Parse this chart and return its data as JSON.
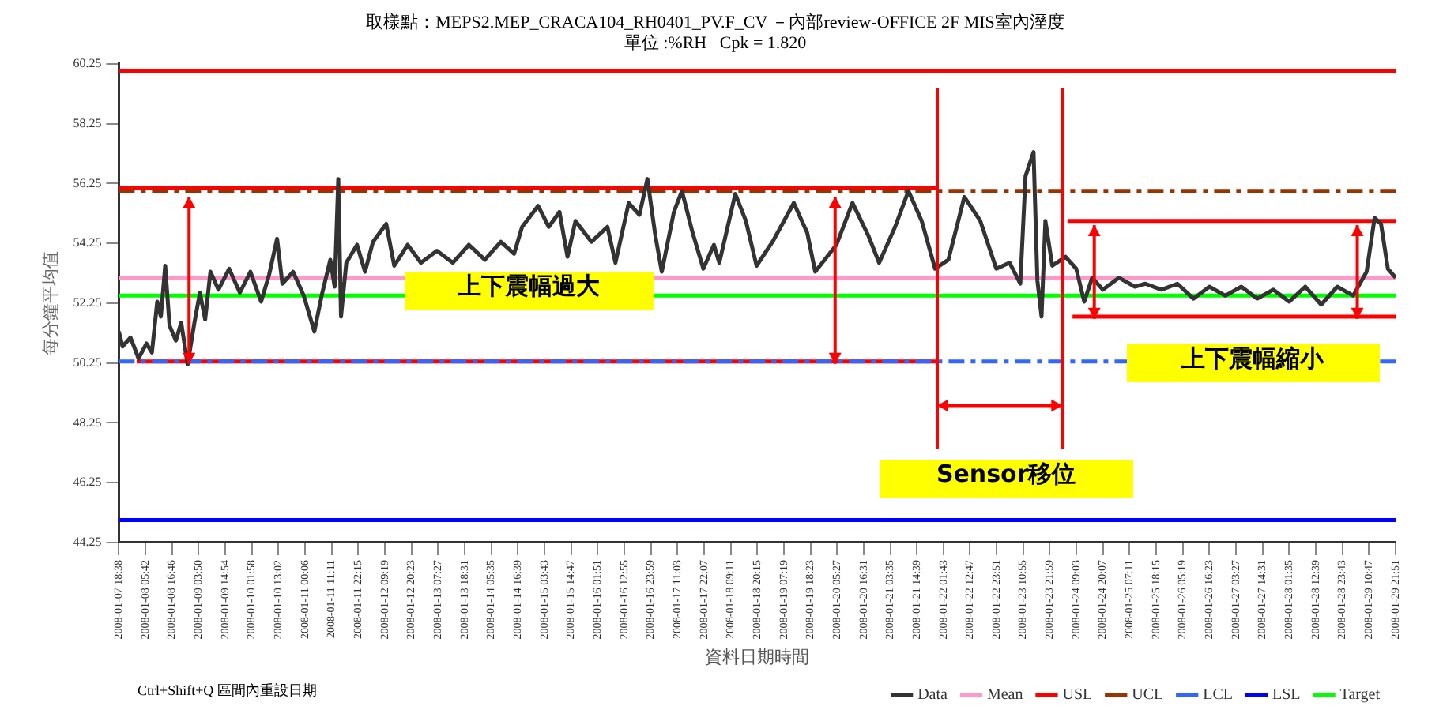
{
  "chart_data": {
    "type": "line",
    "title": "取樣點：MEPS2.MEP_CRACA104_RH0401_PV.F_CV －內部review-OFFICE 2F MIS室內溼度",
    "subtitle": "單位 :%RH   Cpk = 1.820",
    "xlabel": "資料日期時間",
    "ylabel": "每分鐘平均值",
    "xlim": [
      "2008-01-07T18:38",
      "2008-01-29T21:51"
    ],
    "xticks": [
      {
        "value": "2008-01-07T18:38",
        "label": "2008-01-07 18:38"
      },
      {
        "value": "2008-01-08T05:42",
        "label": "2008-01-08 05:42"
      },
      {
        "value": "2008-01-08T16:46",
        "label": "2008-01-08 16:46"
      },
      {
        "value": "2008-01-09T03:50",
        "label": "2008-01-09 03:50"
      },
      {
        "value": "2008-01-09T14:54",
        "label": "2008-01-09 14:54"
      },
      {
        "value": "2008-01-10T01:58",
        "label": "2008-01-10 01:58"
      },
      {
        "value": "2008-01-10T13:02",
        "label": "2008-01-10 13:02"
      },
      {
        "value": "2008-01-11T00:06",
        "label": "2008-01-11 00:06"
      },
      {
        "value": "2008-01-11T11:11",
        "label": "2008-01-11 11:11"
      },
      {
        "value": "2008-01-11T22:15",
        "label": "2008-01-11 22:15"
      },
      {
        "value": "2008-01-12T09:19",
        "label": "2008-01-12 09:19"
      },
      {
        "value": "2008-01-12T20:23",
        "label": "2008-01-12 20:23"
      },
      {
        "value": "2008-01-13T07:27",
        "label": "2008-01-13 07:27"
      },
      {
        "value": "2008-01-13T18:31",
        "label": "2008-01-13 18:31"
      },
      {
        "value": "2008-01-14T05:35",
        "label": "2008-01-14 05:35"
      },
      {
        "value": "2008-01-14T16:39",
        "label": "2008-01-14 16:39"
      },
      {
        "value": "2008-01-15T03:43",
        "label": "2008-01-15 03:43"
      },
      {
        "value": "2008-01-15T14:47",
        "label": "2008-01-15 14:47"
      },
      {
        "value": "2008-01-16T01:51",
        "label": "2008-01-16 01:51"
      },
      {
        "value": "2008-01-16T12:55",
        "label": "2008-01-16 12:55"
      },
      {
        "value": "2008-01-16T23:59",
        "label": "2008-01-16 23:59"
      },
      {
        "value": "2008-01-17T11:03",
        "label": "2008-01-17 11:03"
      },
      {
        "value": "2008-01-17T22:07",
        "label": "2008-01-17 22:07"
      },
      {
        "value": "2008-01-18T09:11",
        "label": "2008-01-18 09:11"
      },
      {
        "value": "2008-01-18T20:15",
        "label": "2008-01-18 20:15"
      },
      {
        "value": "2008-01-19T07:19",
        "label": "2008-01-19 07:19"
      },
      {
        "value": "2008-01-19T18:23",
        "label": "2008-01-19 18:23"
      },
      {
        "value": "2008-01-20T05:27",
        "label": "2008-01-20 05:27"
      },
      {
        "value": "2008-01-20T16:31",
        "label": "2008-01-20 16:31"
      },
      {
        "value": "2008-01-21T03:35",
        "label": "2008-01-21 03:35"
      },
      {
        "value": "2008-01-21T14:39",
        "label": "2008-01-21 14:39"
      },
      {
        "value": "2008-01-22T01:43",
        "label": "2008-01-22 01:43"
      },
      {
        "value": "2008-01-22T12:47",
        "label": "2008-01-22 12:47"
      },
      {
        "value": "2008-01-22T23:51",
        "label": "2008-01-22 23:51"
      },
      {
        "value": "2008-01-23T10:55",
        "label": "2008-01-23 10:55"
      },
      {
        "value": "2008-01-23T21:59",
        "label": "2008-01-23 21:59"
      },
      {
        "value": "2008-01-24T09:03",
        "label": "2008-01-24 09:03"
      },
      {
        "value": "2008-01-24T20:07",
        "label": "2008-01-24 20:07"
      },
      {
        "value": "2008-01-25T07:11",
        "label": "2008-01-25 07:11"
      },
      {
        "value": "2008-01-25T18:15",
        "label": "2008-01-25 18:15"
      },
      {
        "value": "2008-01-26T05:19",
        "label": "2008-01-26 05:19"
      },
      {
        "value": "2008-01-26T16:23",
        "label": "2008-01-26 16:23"
      },
      {
        "value": "2008-01-27T03:27",
        "label": "2008-01-27 03:27"
      },
      {
        "value": "2008-01-27T14:31",
        "label": "2008-01-27 14:31"
      },
      {
        "value": "2008-01-28T01:35",
        "label": "2008-01-28 01:35"
      },
      {
        "value": "2008-01-28T12:39",
        "label": "2008-01-28 12:39"
      },
      {
        "value": "2008-01-28T23:43",
        "label": "2008-01-28 23:43"
      },
      {
        "value": "2008-01-29T10:47",
        "label": "2008-01-29 10:47"
      },
      {
        "value": "2008-01-29T21:51",
        "label": "2008-01-29 21:51"
      }
    ],
    "ylim": [
      44.25,
      60.25
    ],
    "yticks": [
      44.25,
      46.25,
      48.25,
      50.25,
      52.25,
      54.25,
      56.25,
      58.25,
      60.25
    ],
    "grid": false,
    "legend": "bottom",
    "marker": "none",
    "annotations": [
      "上下震幅過大",
      "上下震幅縮小",
      "Sensor移位",
      "Ctrl+Shift+Q 區間內重設日期"
    ],
    "series": [
      {
        "name": "Data",
        "color": "#333333",
        "x": [
          "2008-01-07T18:38",
          "2008-01-07T20:10",
          "2008-01-07T23:29",
          "2008-01-08T02:49",
          "2008-01-08T06:08",
          "2008-01-08T08:24",
          "2008-01-08T10:36",
          "2008-01-08T12:07",
          "2008-01-08T13:55",
          "2008-01-08T15:43",
          "2008-01-08T18:22",
          "2008-01-08T20:34",
          "2008-01-08T23:14",
          "2008-01-09T02:05",
          "2008-01-09T04:21",
          "2008-01-09T06:33",
          "2008-01-09T08:44",
          "2008-01-09T12:04",
          "2008-01-09T16:31",
          "2008-01-09T20:58",
          "2008-01-10T01:22",
          "2008-01-10T05:49",
          "2008-01-10T09:09",
          "2008-01-10T12:28",
          "2008-01-10T14:40",
          "2008-01-10T19:07",
          "2008-01-10T23:34",
          "2008-01-11T03:58",
          "2008-01-11T07:17",
          "2008-01-11T10:37",
          "2008-01-11T12:25",
          "2008-01-11T13:56",
          "2008-01-11T15:04",
          "2008-01-11T17:16",
          "2008-01-11T21:43",
          "2008-01-12T01:03",
          "2008-01-12T04:22",
          "2008-01-12T09:53",
          "2008-01-12T13:13",
          "2008-01-12T18:48",
          "2008-01-13T00:19",
          "2008-01-13T06:58",
          "2008-01-13T13:37",
          "2008-01-13T20:16",
          "2008-01-14T02:55",
          "2008-01-14T09:34",
          "2008-01-14T15:05",
          "2008-01-14T18:25",
          "2008-01-15T01:04",
          "2008-01-15T05:31",
          "2008-01-15T09:58",
          "2008-01-15T13:18",
          "2008-01-15T16:37",
          "2008-01-15T23:16",
          "2008-01-16T05:55",
          "2008-01-16T09:15",
          "2008-01-16T14:46",
          "2008-01-16T19:13",
          "2008-01-16T22:33",
          "2008-01-17T01:52",
          "2008-01-17T04:32",
          "2008-01-17T09:35",
          "2008-01-17T12:55",
          "2008-01-17T17:22",
          "2008-01-17T21:49",
          "2008-01-18T02:13",
          "2008-01-18T04:28",
          "2008-01-18T11:07",
          "2008-01-18T15:31",
          "2008-01-18T19:58",
          "2008-01-19T02:37",
          "2008-01-19T11:28",
          "2008-01-19T17:03",
          "2008-01-19T20:22",
          "2008-01-20T05:13",
          "2008-01-20T11:52",
          "2008-01-20T18:31",
          "2008-01-20T22:58",
          "2008-01-21T05:37",
          "2008-01-21T11:09",
          "2008-01-21T16:40",
          "2008-01-21T22:15",
          "2008-01-22T03:46",
          "2008-01-22T10:25",
          "2008-01-22T17:04",
          "2008-01-22T23:43",
          "2008-01-23T05:14",
          "2008-01-23T09:42",
          "2008-01-23T11:53",
          "2008-01-23T15:13",
          "2008-01-23T16:49",
          "2008-01-23T18:32",
          "2008-01-23T20:08",
          "2008-01-23T23:00",
          "2008-01-24T04:31",
          "2008-01-24T08:58",
          "2008-01-24T12:18",
          "2008-01-24T15:37",
          "2008-01-24T20:04",
          "2008-01-25T02:43",
          "2008-01-25T09:22",
          "2008-01-25T13:46",
          "2008-01-25T20:25",
          "2008-01-26T03:04",
          "2008-01-26T09:43",
          "2008-01-26T16:22",
          "2008-01-26T23:01",
          "2008-01-27T05:40",
          "2008-01-27T12:19",
          "2008-01-27T18:58",
          "2008-01-28T01:37",
          "2008-01-28T08:16",
          "2008-01-28T14:55",
          "2008-01-28T21:34",
          "2008-01-29T04:13",
          "2008-01-29T09:48",
          "2008-01-29T13:07",
          "2008-01-29T15:47",
          "2008-01-29T18:39",
          "2008-01-29T21:51"
        ],
        "values": [
          51.3,
          50.8,
          51.1,
          50.4,
          50.9,
          50.6,
          52.3,
          51.8,
          53.5,
          51.5,
          51.0,
          51.6,
          50.2,
          51.6,
          52.6,
          51.7,
          53.3,
          52.7,
          53.4,
          52.6,
          53.3,
          52.3,
          53.2,
          54.4,
          52.9,
          53.3,
          52.5,
          51.3,
          52.6,
          53.7,
          52.8,
          56.4,
          51.8,
          53.6,
          54.2,
          53.3,
          54.3,
          54.9,
          53.5,
          54.2,
          53.6,
          54.0,
          53.6,
          54.2,
          53.7,
          54.3,
          53.9,
          54.8,
          55.5,
          54.8,
          55.3,
          53.8,
          55.0,
          54.3,
          54.8,
          53.6,
          55.6,
          55.2,
          56.4,
          54.5,
          53.3,
          55.3,
          56.0,
          54.6,
          53.4,
          54.2,
          53.6,
          55.9,
          55.0,
          53.5,
          54.3,
          55.6,
          54.6,
          53.3,
          54.2,
          55.6,
          54.5,
          53.6,
          54.8,
          56.0,
          55.0,
          53.4,
          53.7,
          55.8,
          55.0,
          53.4,
          53.6,
          52.9,
          56.5,
          57.3,
          53.0,
          51.8,
          55.0,
          53.5,
          53.8,
          53.4,
          52.3,
          53.1,
          52.7,
          53.1,
          52.8,
          52.9,
          52.7,
          52.9,
          52.4,
          52.8,
          52.5,
          52.8,
          52.4,
          52.7,
          52.3,
          52.8,
          52.2,
          52.8,
          52.5,
          53.3,
          55.1,
          54.9,
          53.4,
          53.1
        ]
      },
      {
        "name": "Mean",
        "color": "#ff99cc",
        "x": [
          "2008-01-07T18:38",
          "2008-01-29T21:51"
        ],
        "values": [
          53.1,
          53.1
        ]
      },
      {
        "name": "USL",
        "color": "#ff0000",
        "x": [
          "2008-01-07T18:38",
          "2008-01-29T21:51"
        ],
        "values": [
          60,
          60
        ]
      },
      {
        "name": "UCL",
        "color": "#993300",
        "line_style": "dashed",
        "x": [
          "2008-01-07T18:38",
          "2008-01-29T21:51"
        ],
        "values": [
          56,
          56
        ]
      },
      {
        "name": "LCL",
        "color": "#3366ff",
        "line_style": "dashed",
        "x": [
          "2008-01-07T18:38",
          "2008-01-29T21:51"
        ],
        "values": [
          50.3,
          50.3
        ]
      },
      {
        "name": "LSL",
        "color": "#0000ff",
        "x": [
          "2008-01-07T18:38",
          "2008-01-29T21:51"
        ],
        "values": [
          45,
          45
        ]
      },
      {
        "name": "Target",
        "color": "#00ff00",
        "x": [
          "2008-01-07T18:38",
          "2008-01-29T21:51"
        ],
        "values": [
          52.5,
          52.5
        ]
      },
      {
        "color": "#ff0000",
        "x": [
          "2008-01-07T18:38",
          "2008-01-21T23:08"
        ],
        "values": [
          56.1,
          56.1
        ]
      },
      {
        "color": "#ff0000",
        "x": [
          "2008-01-08T02:02",
          "2008-01-21T23:08"
        ],
        "values": [
          50.3,
          50.3
        ]
      },
      {
        "color": "#ff0000",
        "x": [
          "2008-01-24T05:20",
          "2008-01-29T21:51"
        ],
        "values": [
          55.0,
          55.0
        ]
      },
      {
        "color": "#ff0000",
        "x": [
          "2008-01-24T07:26",
          "2008-01-29T21:51"
        ],
        "values": [
          51.8,
          51.8
        ]
      }
    ]
  }
}
